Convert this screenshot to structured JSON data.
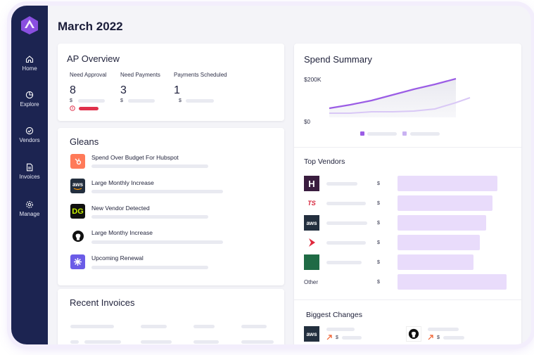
{
  "page": {
    "title": "March 2022"
  },
  "sidebar": {
    "items": [
      {
        "label": "Home",
        "icon": "home-icon"
      },
      {
        "label": "Explore",
        "icon": "explore-icon"
      },
      {
        "label": "Vendors",
        "icon": "vendors-icon"
      },
      {
        "label": "Invoices",
        "icon": "invoices-icon"
      },
      {
        "label": "Manage",
        "icon": "gear-icon"
      }
    ]
  },
  "ap_overview": {
    "title": "AP Overview",
    "metrics": [
      {
        "label": "Need Approval",
        "value": "8",
        "currency": "$"
      },
      {
        "label": "Need Payments",
        "value": "3",
        "currency": "$"
      },
      {
        "label": "Payments Scheduled",
        "value": "1",
        "currency": "$"
      }
    ]
  },
  "gleans": {
    "title": "Gleans",
    "items": [
      {
        "text": "Spend Over Budget For Hubspot",
        "icon": "hubspot-icon"
      },
      {
        "text": "Large Monthly Increase",
        "icon": "aws-icon"
      },
      {
        "text": "New Vendor Detected",
        "icon": "dg-icon"
      },
      {
        "text": "Large Monthy Increase",
        "icon": "github-icon"
      },
      {
        "text": "Upcoming Renewal",
        "icon": "renewal-icon"
      }
    ]
  },
  "recent_invoices": {
    "title": "Recent Invoices"
  },
  "spend_summary": {
    "title": "Spend Summary",
    "y_top": "$200K",
    "y_bottom": "$0"
  },
  "top_vendors": {
    "title": "Top Vendors",
    "currency": "$",
    "other_label": "Other",
    "rows": [
      {
        "logo": "hamilton-logo",
        "letter": "H",
        "share": 0.79
      },
      {
        "logo": "tsi-logo",
        "letter": "TS",
        "share": 0.75
      },
      {
        "logo": "aws-logo",
        "letter": "aws",
        "share": 0.7
      },
      {
        "logo": "red-arrow-logo",
        "letter": "",
        "share": 0.65
      },
      {
        "logo": "green-logo",
        "letter": "",
        "share": 0.6
      },
      {
        "logo": "other",
        "letter": "",
        "share": 0.86
      }
    ]
  },
  "biggest_changes": {
    "title": "Biggest Changes",
    "currency": "$",
    "items": [
      {
        "logo": "aws-icon",
        "letter": "aws"
      },
      {
        "logo": "github-icon",
        "letter": ""
      }
    ]
  },
  "colors": {
    "sidebar": "#1c2451",
    "accent": "#9b5de5",
    "accent_light": "#d9c8f6",
    "alert": "#e0314b"
  }
}
